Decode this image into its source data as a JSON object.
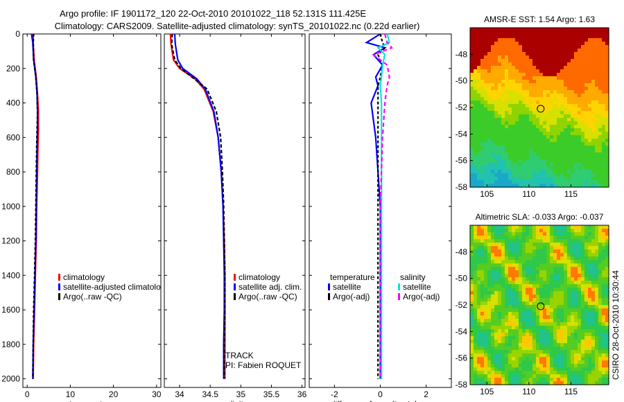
{
  "title": {
    "line1": "Argo profile: IF 1901172_120 22-Oct-2010 20101022_118 52.131S 111.425E",
    "line2": "Climatology: CARS2009. Satellite-adjusted climatology: synTS_20101022.nc (0.22d earlier)"
  },
  "stamp": "CSIRO 28-Oct-2010 10:30:44",
  "colors": {
    "climatology": "#ff0000",
    "satellite": "#0000ff",
    "argo": "#000000",
    "sal_satellite": "#00e5e5",
    "sal_argo": "#ff00ff",
    "warm": "#aa0000"
  },
  "chart_data": [
    {
      "id": "temperature",
      "type": "line",
      "xlabel": "temperature",
      "ylabel": "",
      "xlim": [
        -1,
        31
      ],
      "ylim": [
        2050,
        0
      ],
      "xticks": [
        0,
        10,
        20,
        30
      ],
      "xtick_labels": [
        "0",
        "10",
        "20",
        "30"
      ],
      "yticks": [
        0,
        200,
        400,
        600,
        800,
        1000,
        1200,
        1400,
        1600,
        1800,
        2000
      ],
      "ytick_labels": [
        "0",
        "200",
        "400",
        "600",
        "800",
        "1000",
        "1200",
        "1400",
        "1600",
        "1800",
        "2000"
      ],
      "legend": {
        "position": "center-right",
        "entries": [
          {
            "label": "climatology",
            "color": "#ff0000"
          },
          {
            "label": "satellite-adjusted climatology",
            "color": "#0000ff"
          },
          {
            "label": "Argo(..raw -QC)",
            "color": "#000000"
          }
        ]
      },
      "series": [
        {
          "name": "climatology",
          "color": "#ff0000",
          "dash": "",
          "x": [
            1.4,
            1.4,
            1.6,
            2.1,
            2.4,
            2.6,
            2.6,
            2.5,
            2.4,
            2.2,
            2.1,
            1.9,
            1.7,
            1.5,
            1.4
          ],
          "depth": [
            0,
            50,
            150,
            250,
            350,
            450,
            550,
            650,
            800,
            1000,
            1200,
            1400,
            1600,
            1800,
            2000
          ]
        },
        {
          "name": "satellite-adjusted climatology",
          "color": "#0000ff",
          "dash": "",
          "x": [
            1.0,
            1.3,
            1.5,
            2.0,
            2.3,
            2.4,
            2.4,
            2.3,
            2.2,
            2.1,
            2.0,
            1.8,
            1.6,
            1.4,
            1.3
          ],
          "depth": [
            0,
            50,
            150,
            250,
            350,
            450,
            550,
            650,
            800,
            1000,
            1200,
            1400,
            1600,
            1800,
            2000
          ]
        },
        {
          "name": "Argo(..raw -QC)",
          "color": "#000000",
          "dash": "4,3",
          "x": [
            1.5,
            1.4,
            1.5,
            2.0,
            2.3,
            2.4,
            2.3,
            2.2,
            2.1,
            2.0,
            1.9,
            1.7,
            1.5,
            1.4,
            1.3
          ],
          "depth": [
            0,
            50,
            150,
            250,
            350,
            450,
            550,
            650,
            800,
            1000,
            1200,
            1400,
            1600,
            1800,
            2000
          ]
        }
      ]
    },
    {
      "id": "salinity",
      "type": "line",
      "xlabel": "salinity",
      "xlim": [
        33.75,
        36.05
      ],
      "ylim": [
        2050,
        0
      ],
      "xticks": [
        34,
        34.5,
        35,
        35.5,
        36
      ],
      "xtick_labels": [
        "34",
        "34.5",
        "35",
        "35.5",
        "36"
      ],
      "legend": {
        "position": "center-right",
        "entries": [
          {
            "label": "climatology",
            "color": "#ff0000"
          },
          {
            "label": "satellite adj. clim.",
            "color": "#0000ff"
          },
          {
            "label": "Argo(..raw -QC)",
            "color": "#000000"
          }
        ]
      },
      "annotations": [
        "TRACK",
        "PI: Fabien ROQUET"
      ],
      "series": [
        {
          "name": "climatology",
          "color": "#ff0000",
          "dash": "",
          "x": [
            33.85,
            33.86,
            33.9,
            34.0,
            34.25,
            34.4,
            34.55,
            34.63,
            34.68,
            34.71,
            34.73,
            34.74,
            34.74,
            34.74,
            34.74
          ],
          "depth": [
            0,
            60,
            150,
            200,
            260,
            320,
            450,
            600,
            800,
            1000,
            1200,
            1400,
            1600,
            1800,
            2000
          ]
        },
        {
          "name": "satellite adj. clim.",
          "color": "#0000ff",
          "dash": "",
          "x": [
            33.92,
            33.93,
            33.97,
            34.05,
            34.28,
            34.42,
            34.56,
            34.63,
            34.68,
            34.71,
            34.72,
            34.73,
            34.73,
            34.72,
            34.72
          ],
          "depth": [
            0,
            60,
            150,
            200,
            260,
            320,
            450,
            600,
            800,
            1000,
            1200,
            1400,
            1600,
            1800,
            2000
          ]
        },
        {
          "name": "Argo(..raw -QC)",
          "color": "#000000",
          "dash": "5,3",
          "x": [
            33.88,
            33.87,
            33.92,
            34.02,
            34.24,
            34.45,
            34.6,
            34.67,
            34.7,
            34.72,
            34.73,
            34.74,
            34.74,
            34.73,
            34.73
          ],
          "depth": [
            0,
            60,
            150,
            200,
            260,
            320,
            450,
            600,
            800,
            1000,
            1200,
            1400,
            1600,
            1800,
            2000
          ]
        }
      ]
    },
    {
      "id": "difference",
      "type": "line",
      "xlabel": "difference from climatology",
      "xlim": [
        -3.1,
        3.1
      ],
      "ylim": [
        2050,
        0
      ],
      "xticks": [
        -2,
        0,
        2
      ],
      "xtick_labels": [
        "-2",
        "0",
        "2"
      ],
      "legend": {
        "position": "center",
        "groups": [
          {
            "title": "temperature",
            "entries": [
              {
                "label": "satellite",
                "color": "#0000ff"
              },
              {
                "label": "Argo(-adj)",
                "color": "#000000"
              }
            ]
          },
          {
            "title": "salinity",
            "entries": [
              {
                "label": "satellite",
                "color": "#00e5e5"
              },
              {
                "label": "Argo(-adj)",
                "color": "#ff00ff"
              }
            ]
          }
        ]
      },
      "series": [
        {
          "name": "temperature satellite",
          "color": "#0000ff",
          "dash": "",
          "x": [
            0.0,
            -0.6,
            0.2,
            -0.3,
            0.1,
            -0.2,
            -0.1,
            -0.4,
            -0.2,
            -0.1,
            0.0,
            0.0,
            0.0,
            0.0,
            0.0
          ],
          "depth": [
            0,
            50,
            80,
            120,
            180,
            250,
            300,
            400,
            600,
            800,
            1000,
            1200,
            1500,
            1800,
            2000
          ]
        },
        {
          "name": "temperature Argo(-adj)",
          "color": "#000000",
          "dash": "4,3",
          "x": [
            0.0,
            0.1,
            0.2,
            -0.1,
            0.1,
            0.0,
            -0.1,
            -0.1,
            -0.1,
            -0.1,
            -0.1,
            -0.1,
            -0.1,
            -0.1,
            -0.1
          ],
          "depth": [
            0,
            50,
            80,
            120,
            180,
            250,
            300,
            400,
            600,
            800,
            1000,
            1200,
            1500,
            1800,
            2000
          ]
        },
        {
          "name": "salinity satellite",
          "color": "#00e5e5",
          "dash": "",
          "x": [
            0.3,
            0.4,
            -0.1,
            0.2,
            0.1,
            0.05,
            0.0,
            0.05,
            0.05,
            0.05,
            0.05,
            0.05,
            0.05,
            0.05,
            0.05
          ],
          "depth": [
            0,
            50,
            80,
            120,
            180,
            250,
            300,
            400,
            600,
            800,
            1000,
            1200,
            1500,
            1800,
            2000
          ]
        },
        {
          "name": "salinity Argo(-adj)",
          "color": "#ff00ff",
          "dash": "6,4",
          "x": [
            0.2,
            0.3,
            0.5,
            -0.3,
            0.3,
            0.4,
            0.3,
            0.2,
            0.1,
            0.05,
            0.0,
            0.0,
            0.0,
            0.0,
            0.0
          ],
          "depth": [
            0,
            50,
            80,
            120,
            180,
            250,
            300,
            400,
            600,
            800,
            1000,
            1200,
            1500,
            1800,
            2000
          ]
        }
      ]
    },
    {
      "id": "sst-map",
      "type": "heatmap",
      "title": "AMSR-E SST: 1.54 Argo: 1.63",
      "xlim": [
        103,
        119.5
      ],
      "ylim": [
        -58,
        -46
      ],
      "xticks": [
        105,
        110,
        115
      ],
      "xtick_labels": [
        "105",
        "110",
        "115"
      ],
      "yticks": [
        -48,
        -50,
        -52,
        -54,
        -56,
        -58
      ],
      "ytick_labels": [
        "-48",
        "-50",
        "-52",
        "-54",
        "-56",
        "-58"
      ],
      "marker": {
        "lon": 111.4,
        "lat": -52.1
      }
    },
    {
      "id": "sla-map",
      "type": "heatmap",
      "title": "Altimetric SLA: -0.033 Argo: -0.037",
      "xlim": [
        103,
        119.5
      ],
      "ylim": [
        -58,
        -46
      ],
      "xticks": [
        105,
        110,
        115
      ],
      "xtick_labels": [
        "105",
        "110",
        "115"
      ],
      "yticks": [
        -48,
        -50,
        -52,
        -54,
        -56,
        -58
      ],
      "ytick_labels": [
        "-48",
        "-50",
        "-52",
        "-54",
        "-56",
        "-58"
      ],
      "marker": {
        "lon": 111.4,
        "lat": -52.1
      }
    }
  ]
}
